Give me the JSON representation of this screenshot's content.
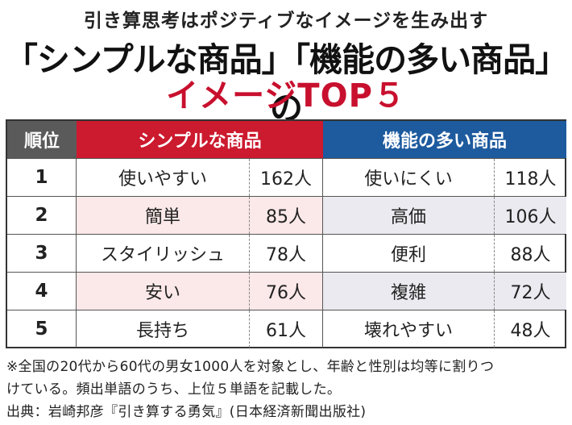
{
  "header": {
    "subtitle": "引き算思考はポジティブなイメージを生み出す",
    "title": "「シンプルな商品」「機能の多い商品」の",
    "title2": "イメージTOP５"
  },
  "table": {
    "col_rank": "順位",
    "col_simple": "シンプルな商品",
    "col_feature": "機能の多い商品",
    "rows": [
      {
        "rank": "1",
        "simple_word": "使いやすい",
        "simple_count": "162人",
        "feature_word": "使いにくい",
        "feature_count": "118人"
      },
      {
        "rank": "2",
        "simple_word": "簡単",
        "simple_count": "85人",
        "feature_word": "高価",
        "feature_count": "106人"
      },
      {
        "rank": "3",
        "simple_word": "スタイリッシュ",
        "simple_count": "78人",
        "feature_word": "便利",
        "feature_count": "88人"
      },
      {
        "rank": "4",
        "simple_word": "安い",
        "simple_count": "76人",
        "feature_word": "複雑",
        "feature_count": "72人"
      },
      {
        "rank": "5",
        "simple_word": "長持ち",
        "simple_count": "61人",
        "feature_word": "壊れやすい",
        "feature_count": "48人"
      }
    ]
  },
  "notes": {
    "line1": "※全国の20代から60代の男女1000人を対象とし、年齢と性別は均等に割りつ",
    "line2": "けている。頻出単語のうち、上位５単語を記載した。",
    "source": "出典：岩崎邦彦『引き算する勇気』(日本経済新聞出版社)"
  }
}
